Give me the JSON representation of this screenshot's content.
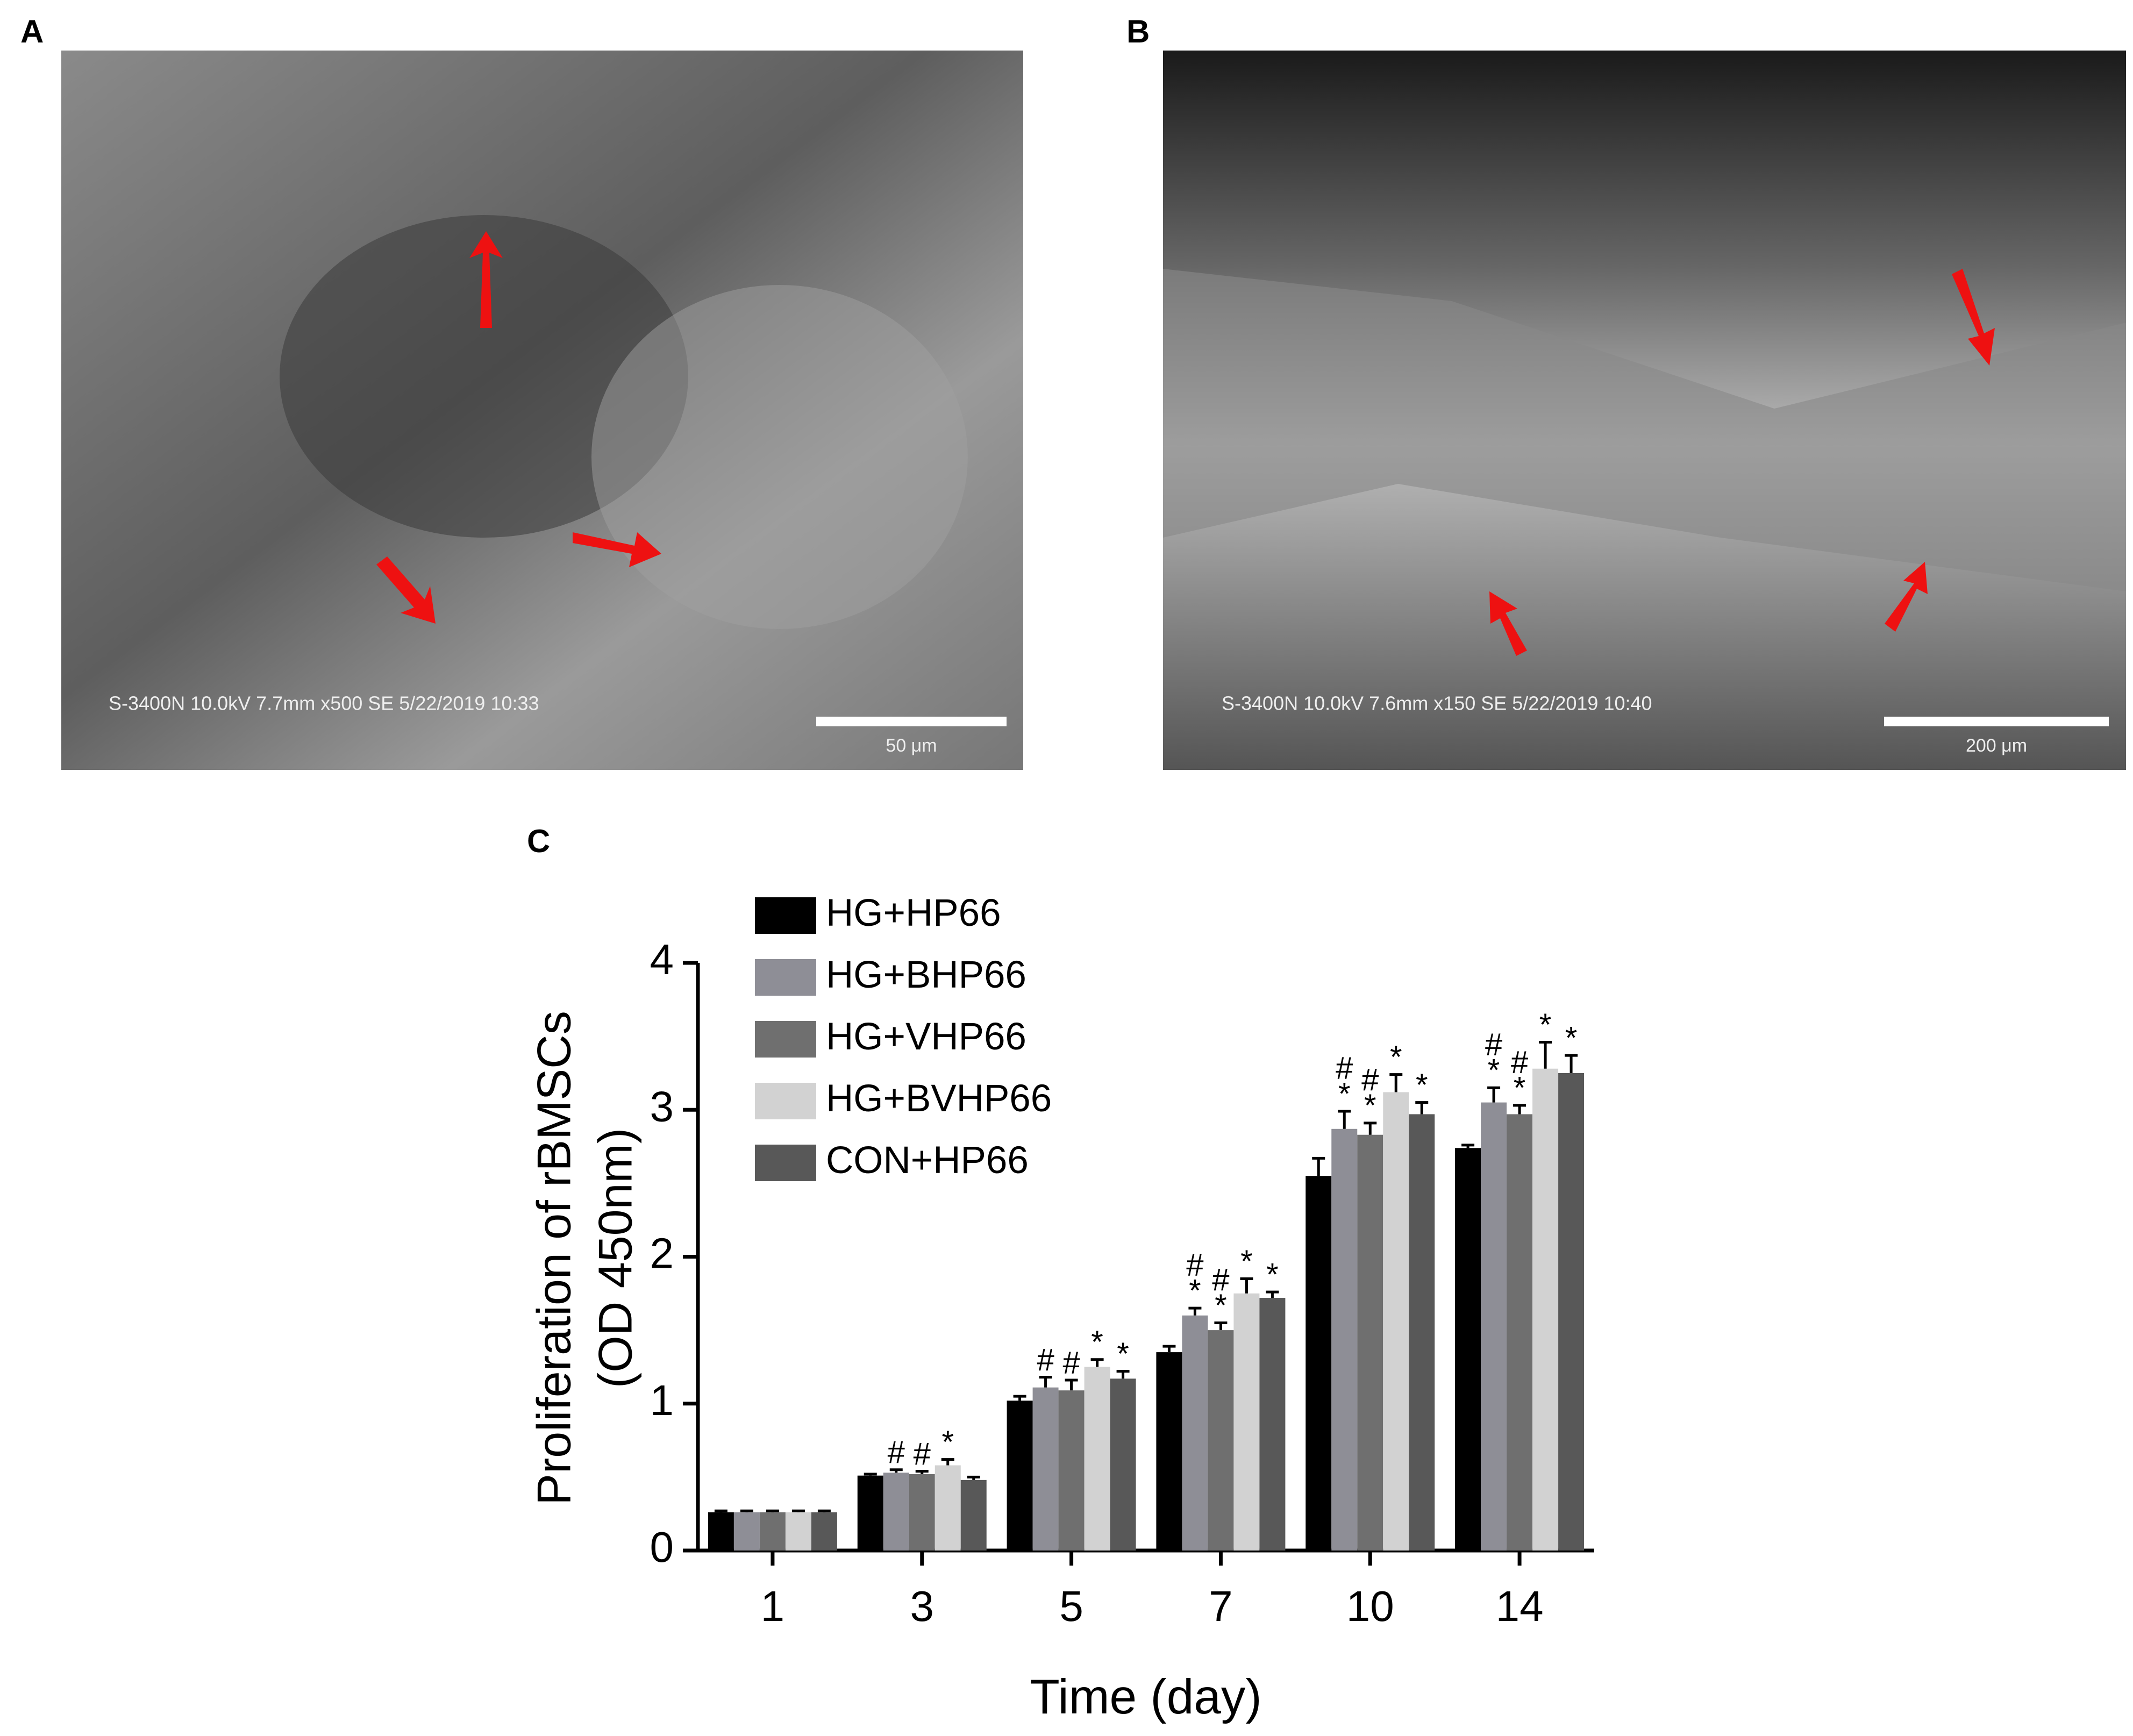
{
  "panels": [
    {
      "label": "A",
      "caption": "S-3400N 10.0kV 7.7mm x500 SE 5/22/2019 10:33",
      "scale_bar": "50 μm"
    },
    {
      "label": "B",
      "caption": "S-3400N 10.0kV 7.6mm x150 SE 5/22/2019 10:40",
      "scale_bar": "200 μm"
    }
  ],
  "chart_data": {
    "type": "bar",
    "label": "C",
    "x_label": "Time (day)",
    "y_label": [
      "Proliferation of rBMSCs",
      "(OD 450nm)"
    ],
    "categories": [
      "1",
      "3",
      "5",
      "7",
      "10",
      "14"
    ],
    "ylim": [
      0,
      4
    ],
    "yticks": [
      0,
      1,
      2,
      3,
      4
    ],
    "series": [
      {
        "name": "HG+HP66",
        "color": "#000000",
        "values": [
          0.26,
          0.51,
          1.02,
          1.35,
          2.55,
          2.74
        ],
        "errors": [
          0.01,
          0.01,
          0.03,
          0.04,
          0.12,
          0.02
        ],
        "annotations": [
          null,
          null,
          null,
          null,
          null,
          null
        ]
      },
      {
        "name": "HG+BHP66",
        "color": "#8e8e96",
        "values": [
          0.26,
          0.53,
          1.11,
          1.6,
          2.87,
          3.05
        ],
        "errors": [
          0.01,
          0.02,
          0.07,
          0.05,
          0.12,
          0.1
        ],
        "annotations": [
          null,
          [
            "#"
          ],
          [
            "#"
          ],
          [
            "#",
            "*"
          ],
          [
            "#",
            "*"
          ],
          [
            "#",
            "*"
          ]
        ]
      },
      {
        "name": "HG+VHP66",
        "color": "#6f6f6f",
        "values": [
          0.26,
          0.52,
          1.09,
          1.5,
          2.83,
          2.97
        ],
        "errors": [
          0.01,
          0.02,
          0.07,
          0.05,
          0.08,
          0.06
        ],
        "annotations": [
          null,
          [
            "#"
          ],
          [
            "#"
          ],
          [
            "#",
            "*"
          ],
          [
            "#",
            "*"
          ],
          [
            "#",
            "*"
          ]
        ]
      },
      {
        "name": "HG+BVHP66",
        "color": "#d2d2d2",
        "values": [
          0.26,
          0.58,
          1.25,
          1.75,
          3.12,
          3.28
        ],
        "errors": [
          0.01,
          0.04,
          0.05,
          0.1,
          0.12,
          0.18
        ],
        "annotations": [
          null,
          [
            "*"
          ],
          [
            "*"
          ],
          [
            "*"
          ],
          [
            "*"
          ],
          [
            "*"
          ]
        ]
      },
      {
        "name": "CON+HP66",
        "color": "#585858",
        "values": [
          0.26,
          0.48,
          1.17,
          1.72,
          2.97,
          3.25
        ],
        "errors": [
          0.01,
          0.02,
          0.05,
          0.04,
          0.08,
          0.12
        ],
        "annotations": [
          null,
          null,
          [
            "*"
          ],
          [
            "*"
          ],
          [
            "*"
          ],
          [
            "*"
          ]
        ]
      }
    ]
  }
}
